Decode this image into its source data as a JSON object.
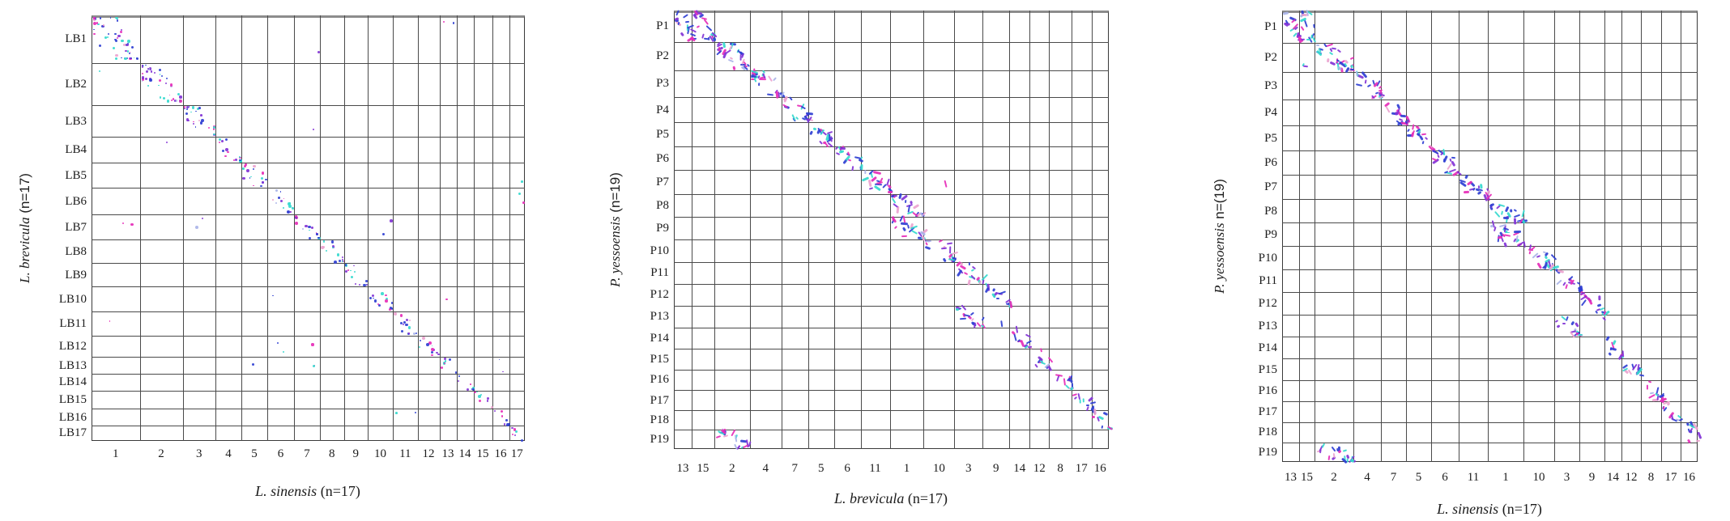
{
  "figure": {
    "background": "#ffffff",
    "grid_line_color": "#4a4a4a"
  },
  "palette": {
    "blue": "#2f3fd3",
    "purple": "#8233d6",
    "magenta": "#e62eb8",
    "cyan": "#35d9ce",
    "light_pink": "#eba3cf",
    "lavender": "#aab4e8"
  },
  "chart_data": [
    {
      "panel": "left",
      "type": "scatter",
      "plot_kind": "synteny-dotplot",
      "xlabel": "L. sinensis (n=17)",
      "xlabel_italic": "L. sinensis",
      "xlabel_rest": " (n=17)",
      "ylabel": "L. brevicula (n=17)",
      "ylabel_italic": "L. brevicula",
      "ylabel_rest": " (n=17)",
      "rows": [
        "LB1",
        "LB2",
        "LB3",
        "LB4",
        "LB5",
        "LB6",
        "LB7",
        "LB8",
        "LB9",
        "LB10",
        "LB11",
        "LB12",
        "LB13",
        "LB14",
        "LB15",
        "LB16",
        "LB17"
      ],
      "cols": [
        "1",
        "2",
        "3",
        "4",
        "5",
        "6",
        "7",
        "8",
        "9",
        "10",
        "11",
        "12",
        "13",
        "14",
        "15",
        "16",
        "17"
      ],
      "row_weights": [
        59.5,
        53,
        40.5,
        32,
        32,
        33,
        32,
        29.5,
        29.5,
        31,
        30.5,
        27,
        21,
        21,
        23,
        21,
        19.5
      ],
      "col_weights": [
        59.5,
        53,
        40.5,
        32,
        32,
        33,
        32,
        29.5,
        29.5,
        31,
        30.5,
        27,
        21,
        21,
        23,
        21,
        19.5
      ],
      "blocks": [
        [
          "LB1",
          "1"
        ],
        [
          "LB2",
          "2"
        ],
        [
          "LB3",
          "3"
        ],
        [
          "LB4",
          "4"
        ],
        [
          "LB5",
          "5"
        ],
        [
          "LB6",
          "6"
        ],
        [
          "LB7",
          "7"
        ],
        [
          "LB8",
          "8"
        ],
        [
          "LB9",
          "9"
        ],
        [
          "LB10",
          "10"
        ],
        [
          "LB11",
          "11"
        ],
        [
          "LB12",
          "12"
        ],
        [
          "LB13",
          "13"
        ],
        [
          "LB14",
          "14"
        ],
        [
          "LB15",
          "15"
        ],
        [
          "LB16",
          "16"
        ],
        [
          "LB17",
          "17"
        ]
      ],
      "stray_cells": [
        [
          "LB1",
          "7"
        ],
        [
          "LB1",
          "13"
        ],
        [
          "LB2",
          "1"
        ],
        [
          "LB3",
          "7"
        ],
        [
          "LB4",
          "2"
        ],
        [
          "LB5",
          "17"
        ],
        [
          "LB6",
          "17"
        ],
        [
          "LB7",
          "1"
        ],
        [
          "LB7",
          "3"
        ],
        [
          "LB7",
          "10"
        ],
        [
          "LB10",
          "6"
        ],
        [
          "LB10",
          "13"
        ],
        [
          "LB11",
          "1"
        ],
        [
          "LB12",
          "6"
        ],
        [
          "LB12",
          "7"
        ],
        [
          "LB13",
          "5"
        ],
        [
          "LB13",
          "7"
        ],
        [
          "LB13",
          "16"
        ],
        [
          "LB16",
          "11"
        ]
      ],
      "dot_style": "dot"
    },
    {
      "panel": "middle",
      "type": "scatter",
      "plot_kind": "synteny-dotplot",
      "xlabel": "L. brevicula (n=17)",
      "xlabel_italic": "L. brevicula",
      "xlabel_rest": " (n=17)",
      "ylabel": "P. yessoensis (n=19)",
      "ylabel_italic": "P. yessoensis",
      "ylabel_rest": " (n=19)",
      "rows": [
        "P1",
        "P2",
        "P3",
        "P4",
        "P5",
        "P6",
        "P7",
        "P8",
        "P9",
        "P10",
        "P11",
        "P12",
        "P13",
        "P14",
        "P15",
        "P16",
        "P17",
        "P18",
        "P19"
      ],
      "cols": [
        "13",
        "15",
        "2",
        "4",
        "7",
        "5",
        "6",
        "11",
        "1",
        "10",
        "3",
        "9",
        "14",
        "12",
        "8",
        "17",
        "16"
      ],
      "row_weights": [
        40,
        36,
        34,
        32,
        31,
        30,
        30,
        29,
        29,
        28.5,
        28,
        28,
        27.5,
        27,
        26.5,
        26,
        25.5,
        25,
        24.5
      ],
      "col_weights": [
        22,
        28,
        44,
        39,
        33,
        32,
        33,
        36,
        42,
        38,
        35,
        33,
        25,
        24,
        28,
        24.5,
        21.5
      ],
      "blocks": [
        [
          "P1",
          "13"
        ],
        [
          "P1",
          "15"
        ],
        [
          "P2",
          "2"
        ],
        [
          "P3",
          "4"
        ],
        [
          "P4",
          "7"
        ],
        [
          "P5",
          "5"
        ],
        [
          "P6",
          "6"
        ],
        [
          "P7",
          "11"
        ],
        [
          "P8",
          "1"
        ],
        [
          "P9",
          "1"
        ],
        [
          "P10",
          "10"
        ],
        [
          "P11",
          "3"
        ],
        [
          "P12",
          "9"
        ],
        [
          "P13",
          "3"
        ],
        [
          "P14",
          "14"
        ],
        [
          "P15",
          "12"
        ],
        [
          "P16",
          "8"
        ],
        [
          "P17",
          "17"
        ],
        [
          "P18",
          "16"
        ],
        [
          "P19",
          "2"
        ]
      ],
      "stray_cells": [
        [
          "P7",
          "10"
        ],
        [
          "P13",
          "9"
        ]
      ],
      "dot_style": "stroke"
    },
    {
      "panel": "right",
      "type": "scatter",
      "plot_kind": "synteny-dotplot",
      "xlabel": "L. sinensis (n=17)",
      "xlabel_italic": "L. sinensis",
      "xlabel_rest": " (n=17)",
      "ylabel": "P. yessoensis n=(19)",
      "ylabel_italic": "P. yessoensis",
      "ylabel_rest": " n=(19)",
      "rows": [
        "P1",
        "P2",
        "P3",
        "P4",
        "P5",
        "P6",
        "P7",
        "P8",
        "P9",
        "P10",
        "P11",
        "P12",
        "P13",
        "P14",
        "P15",
        "P16",
        "P17",
        "P18",
        "P19"
      ],
      "cols": [
        "13",
        "15",
        "2",
        "4",
        "7",
        "5",
        "6",
        "11",
        "1",
        "10",
        "3",
        "9",
        "14",
        "12",
        "8",
        "17",
        "16"
      ],
      "row_weights": [
        40,
        36,
        34,
        32,
        31,
        30,
        30,
        29,
        29,
        28.5,
        28,
        28,
        27.5,
        27,
        26.5,
        26,
        25.5,
        25,
        24.5
      ],
      "col_weights": [
        21,
        19,
        48,
        34,
        31,
        31,
        34,
        36,
        44,
        38,
        31,
        31,
        21,
        24,
        25,
        24,
        21
      ],
      "blocks": [
        [
          "P1",
          "13"
        ],
        [
          "P1",
          "15"
        ],
        [
          "P2",
          "2"
        ],
        [
          "P3",
          "4"
        ],
        [
          "P4",
          "7"
        ],
        [
          "P5",
          "5"
        ],
        [
          "P6",
          "6"
        ],
        [
          "P7",
          "11"
        ],
        [
          "P8",
          "1"
        ],
        [
          "P9",
          "1"
        ],
        [
          "P10",
          "10"
        ],
        [
          "P11",
          "3"
        ],
        [
          "P12",
          "9"
        ],
        [
          "P13",
          "3"
        ],
        [
          "P14",
          "14"
        ],
        [
          "P15",
          "12"
        ],
        [
          "P16",
          "8"
        ],
        [
          "P17",
          "17"
        ],
        [
          "P18",
          "16"
        ],
        [
          "P19",
          "2"
        ]
      ],
      "stray_cells": [
        [
          "P2",
          "15"
        ],
        [
          "P13",
          "9"
        ]
      ],
      "dot_style": "stroke"
    }
  ]
}
